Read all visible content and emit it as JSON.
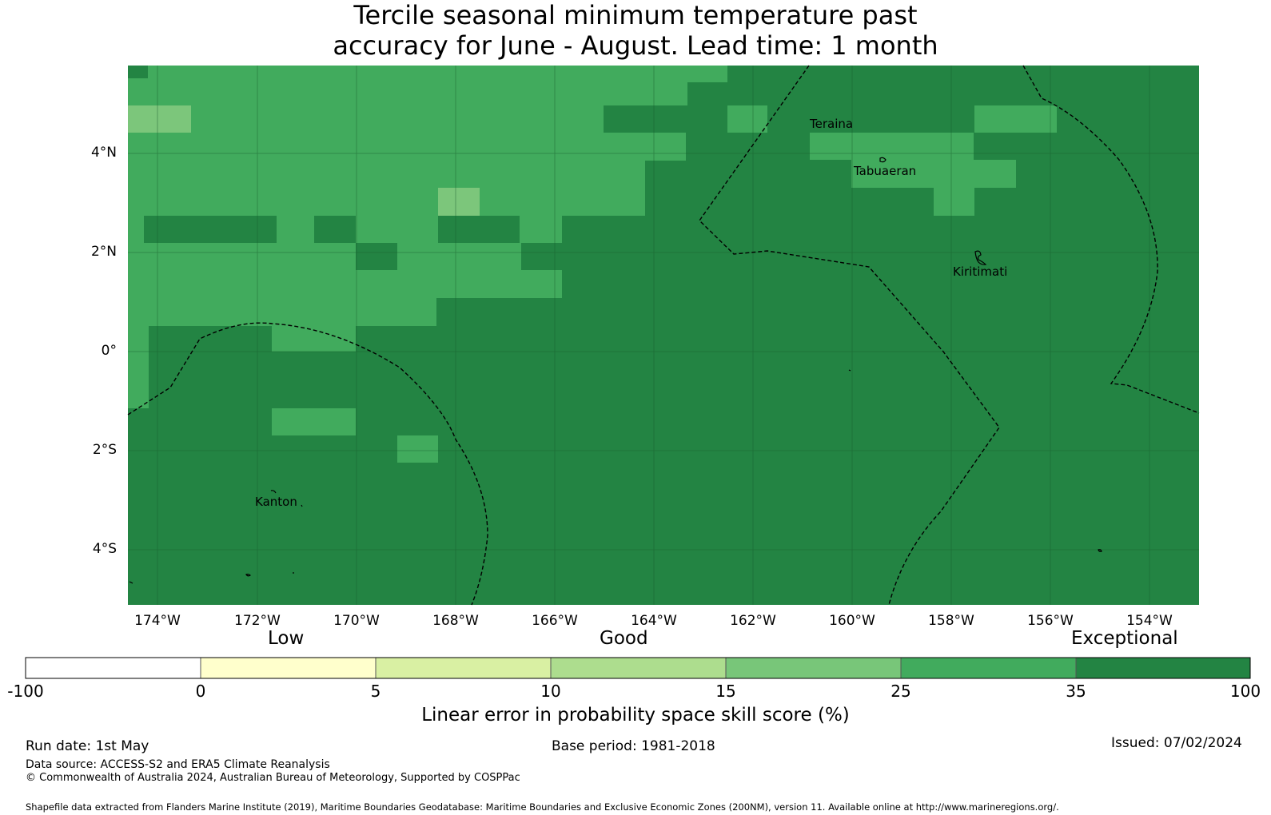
{
  "title": {
    "line1": "Tercile seasonal minimum temperature past",
    "line2": "accuracy for June - August. Lead time: 1 month"
  },
  "map": {
    "lon_range": [
      -174.6,
      -152.9
    ],
    "lat_range": [
      -5.1,
      5.8
    ],
    "lat_ticks": [
      "4°N",
      "2°N",
      "0°",
      "2°S",
      "4°S"
    ],
    "lon_ticks": [
      "174°W",
      "172°W",
      "170°W",
      "168°W",
      "166°W",
      "164°W",
      "162°W",
      "160°W",
      "158°W",
      "156°W",
      "154°W"
    ],
    "places": [
      "Teraina",
      "Tabuaeran",
      "Kiritimati",
      "Kanton"
    ],
    "colors": {
      "light": "#7cc67b",
      "medium": "#41ab5d",
      "dark": "#238443",
      "grid": "#1a5c2e"
    }
  },
  "legend": {
    "categories": [
      "Low",
      "Good",
      "Exceptional"
    ],
    "ticks": [
      "-100",
      "0",
      "5",
      "10",
      "15",
      "25",
      "35",
      "100"
    ],
    "colors": [
      "#ffffff",
      "#ffffcc",
      "#d9f0a3",
      "#addd8e",
      "#78c679",
      "#41ab5d",
      "#238443"
    ],
    "title": "Linear error in probability space skill score (%)"
  },
  "footer": {
    "run_date": "Run date: 1st May",
    "base_period": "Base period: 1981-2018",
    "issued": "Issued: 07/02/2024",
    "data_source": "Data source: ACCESS-S2 and ERA5 Climate Reanalysis",
    "copyright": "© Commonwealth of Australia 2024, Australian Bureau of Meteorology, Supported by COSPPac",
    "shapefile": "Shapefile data extracted from Flanders Marine Institute (2019), Maritime Boundaries Geodatabase: Maritime Boundaries and Exclusive Economic Zones (200NM), version 11. Available online at http://www.marineregions.org/."
  }
}
